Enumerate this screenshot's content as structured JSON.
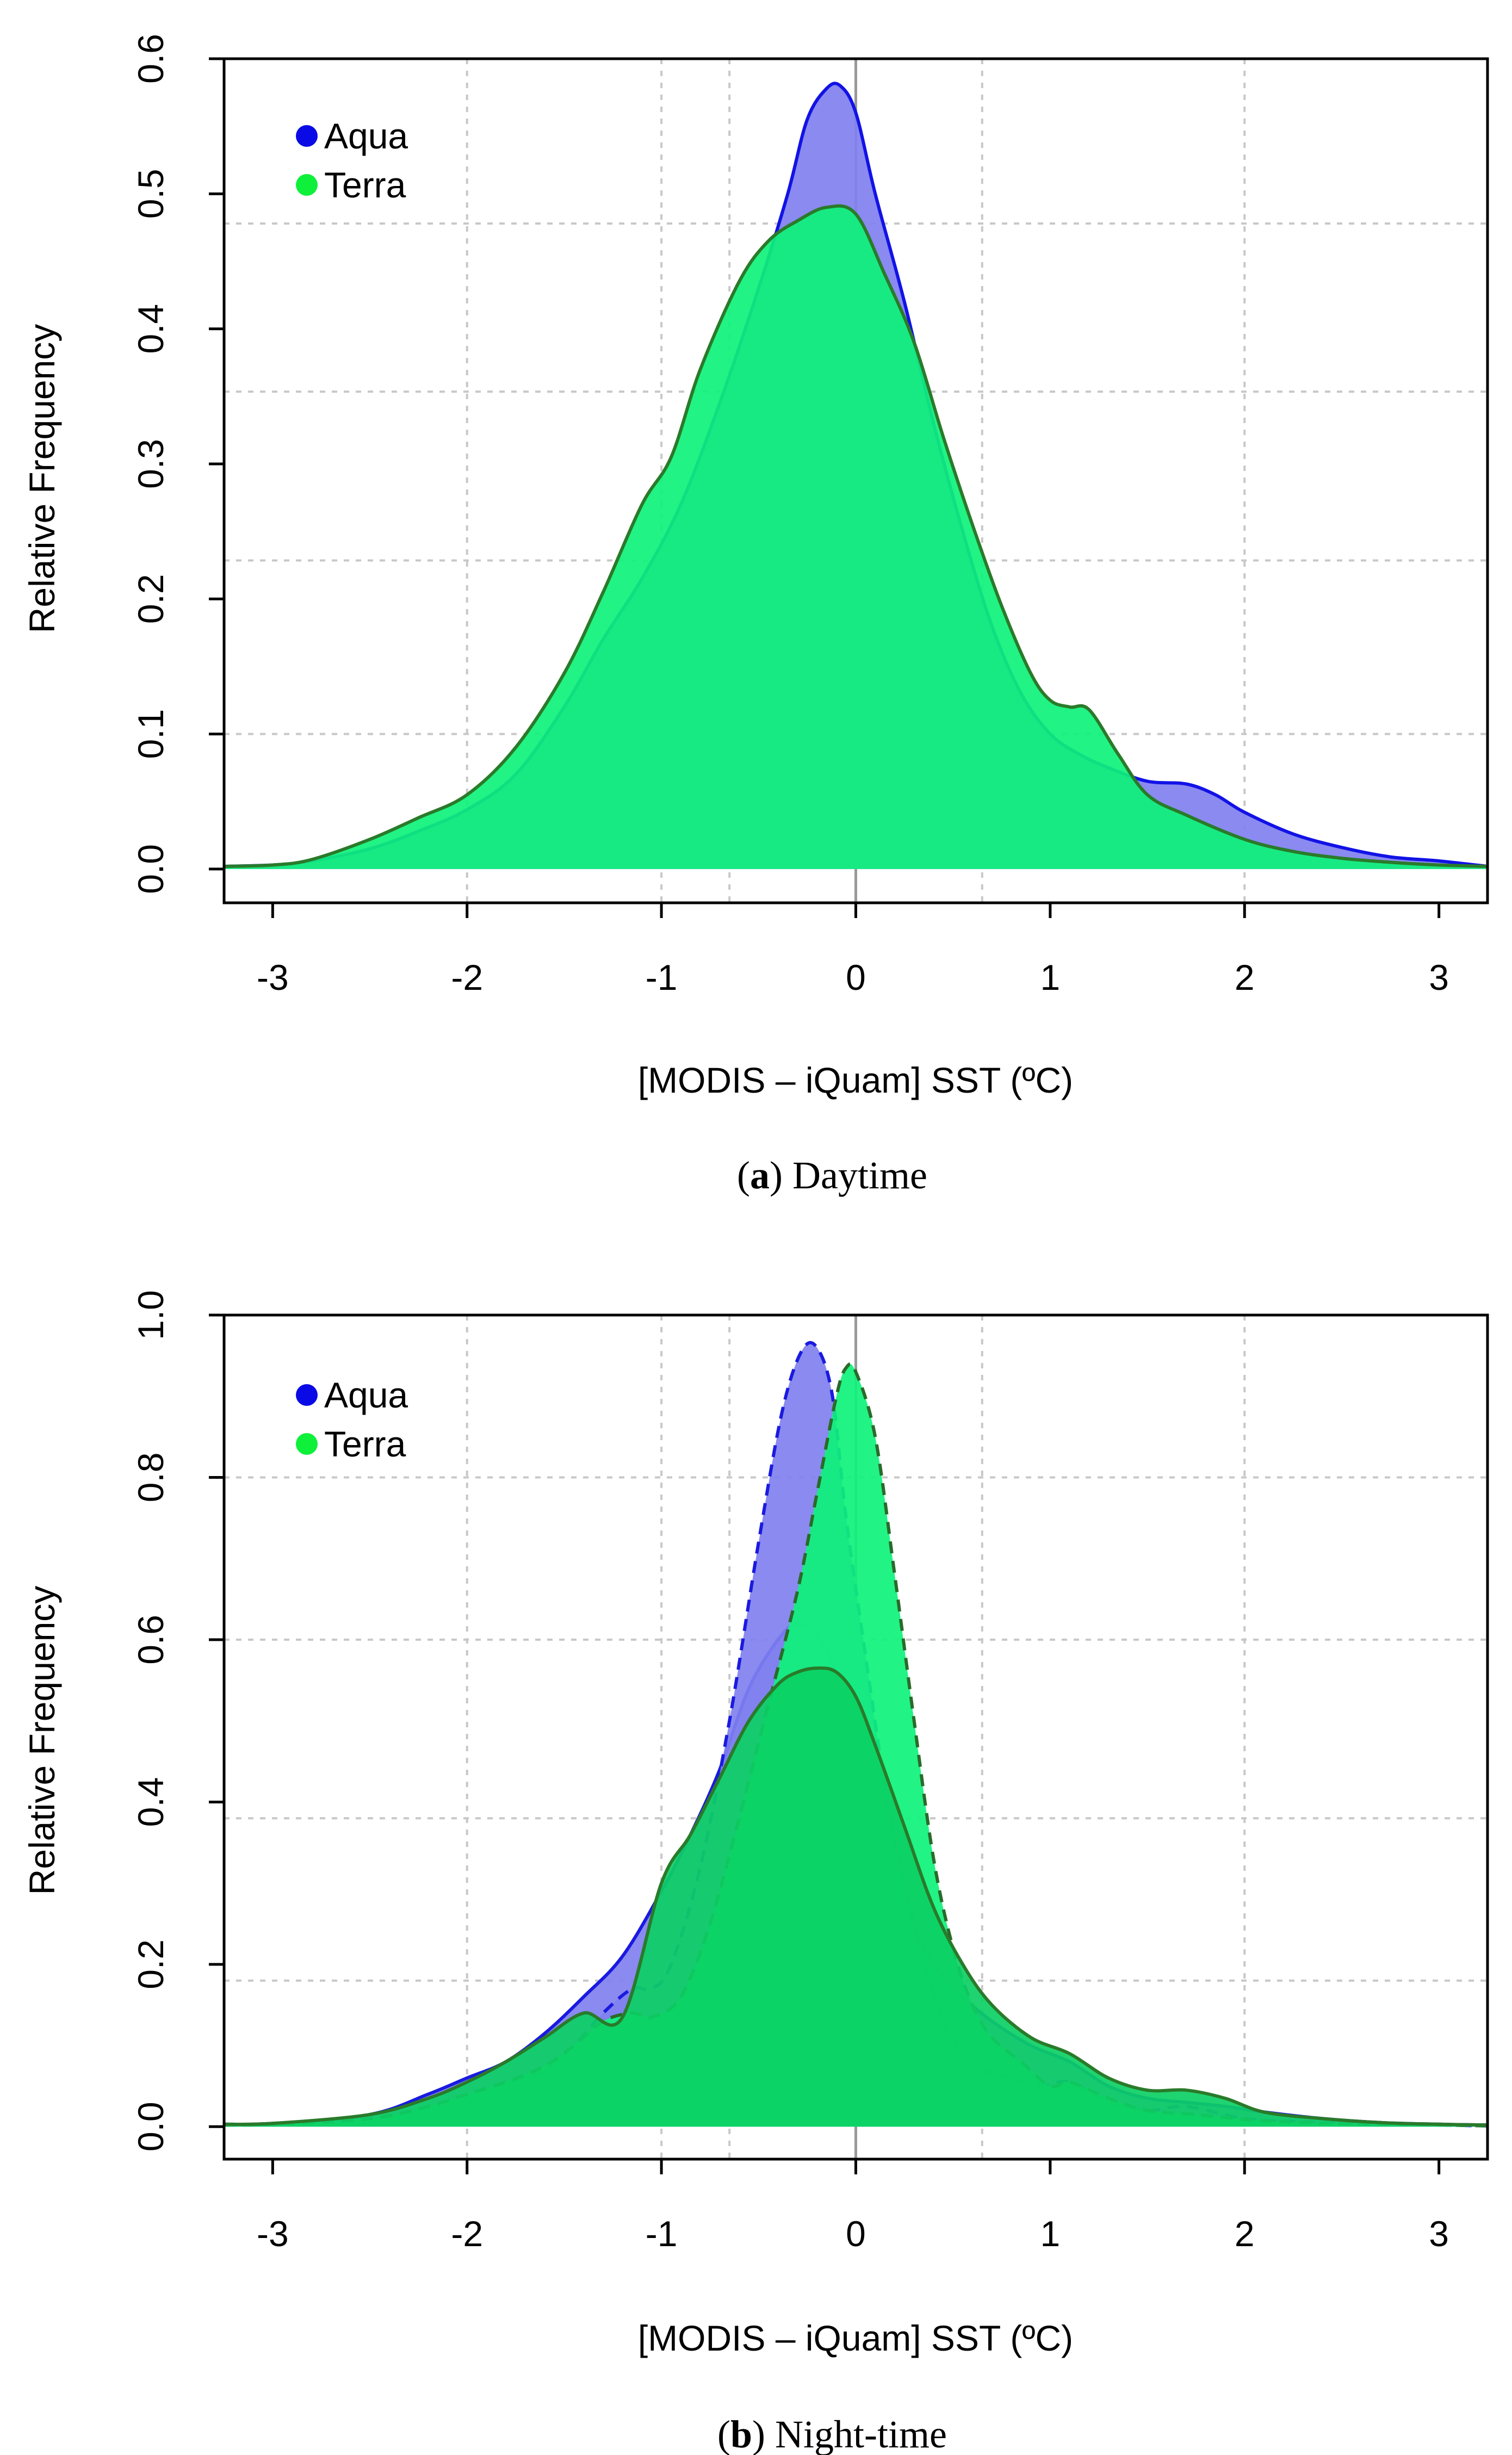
{
  "chart_data": [
    {
      "type": "area",
      "panel_label": "a",
      "panel_title": "Daytime",
      "xlabel": "[MODIS – iQuam] SST (ºC)",
      "ylabel": "Relative Frequency",
      "xlim": [
        -3.25,
        3.25
      ],
      "ylim": [
        -0.025,
        0.6
      ],
      "xticks": [
        -3,
        -2,
        -1,
        0,
        1,
        2,
        3
      ],
      "yticks": [
        0.0,
        0.1,
        0.2,
        0.3,
        0.4,
        0.5,
        0.6
      ],
      "ytick_labels": [
        "0.0",
        "0.1",
        "0.2",
        "0.3",
        "0.4",
        "0.5",
        "0.6"
      ],
      "xtick_labels": [
        "-3",
        "-2",
        "-1",
        "0",
        "1",
        "2",
        "3"
      ],
      "vgrid": [
        -2,
        -1,
        -0.65,
        0.65,
        2
      ],
      "hgrid": [
        0.1,
        0.2285,
        0.3535,
        0.478
      ],
      "zero_line": 0,
      "legend": [
        {
          "label": "Aqua",
          "color": "#0a0ae6"
        },
        {
          "label": "Terra",
          "color": "#0ef03a"
        }
      ],
      "series": [
        {
          "name": "Aqua",
          "fill": "#8080ef",
          "stroke": "#1212e6",
          "dashed": false,
          "x": [
            -3.25,
            -3.0,
            -2.8,
            -2.5,
            -2.25,
            -2.0,
            -1.75,
            -1.5,
            -1.3,
            -1.1,
            -0.9,
            -0.7,
            -0.5,
            -0.35,
            -0.25,
            -0.15,
            -0.08,
            0.0,
            0.1,
            0.25,
            0.4,
            0.55,
            0.7,
            0.85,
            1.0,
            1.15,
            1.3,
            1.5,
            1.7,
            1.85,
            2.0,
            2.25,
            2.5,
            2.75,
            3.0,
            3.25
          ],
          "y": [
            0.002,
            0.003,
            0.006,
            0.015,
            0.028,
            0.044,
            0.07,
            0.12,
            0.17,
            0.215,
            0.27,
            0.345,
            0.43,
            0.5,
            0.555,
            0.578,
            0.58,
            0.56,
            0.5,
            0.42,
            0.33,
            0.25,
            0.18,
            0.13,
            0.1,
            0.085,
            0.075,
            0.065,
            0.063,
            0.055,
            0.042,
            0.026,
            0.016,
            0.009,
            0.006,
            0.002
          ]
        },
        {
          "name": "Terra",
          "fill": "#0ef27a",
          "stroke": "#2a7a2a",
          "dashed": false,
          "x": [
            -3.25,
            -3.0,
            -2.8,
            -2.5,
            -2.25,
            -2.0,
            -1.75,
            -1.5,
            -1.3,
            -1.1,
            -0.95,
            -0.8,
            -0.6,
            -0.45,
            -0.3,
            -0.15,
            0.0,
            0.15,
            0.3,
            0.45,
            0.6,
            0.75,
            0.9,
            1.0,
            1.1,
            1.2,
            1.35,
            1.5,
            1.7,
            2.0,
            2.25,
            2.5,
            2.75,
            3.0,
            3.25
          ],
          "y": [
            0.002,
            0.003,
            0.007,
            0.022,
            0.038,
            0.055,
            0.09,
            0.145,
            0.205,
            0.27,
            0.305,
            0.37,
            0.435,
            0.465,
            0.48,
            0.49,
            0.485,
            0.44,
            0.39,
            0.32,
            0.255,
            0.195,
            0.145,
            0.125,
            0.12,
            0.118,
            0.085,
            0.055,
            0.04,
            0.022,
            0.013,
            0.008,
            0.005,
            0.003,
            0.002
          ]
        }
      ]
    },
    {
      "type": "area",
      "panel_label": "b",
      "panel_title": "Night-time",
      "xlabel": "[MODIS – iQuam] SST (ºC)",
      "ylabel": "Relative Frequency",
      "xlim": [
        -3.25,
        3.25
      ],
      "ylim": [
        -0.04,
        1.0
      ],
      "xticks": [
        -3,
        -2,
        -1,
        0,
        1,
        2,
        3
      ],
      "yticks": [
        0.0,
        0.2,
        0.4,
        0.6,
        0.8,
        1.0
      ],
      "ytick_labels": [
        "0.0",
        "0.2",
        "0.4",
        "0.6",
        "0.8",
        "1.0"
      ],
      "xtick_labels": [
        "-3",
        "-2",
        "-1",
        "0",
        "1",
        "2",
        "3"
      ],
      "vgrid": [
        -2,
        -1,
        -0.65,
        0.65,
        2
      ],
      "hgrid": [
        0.18,
        0.38,
        0.6,
        0.8
      ],
      "zero_line": 0,
      "legend": [
        {
          "label": "Aqua",
          "color": "#0a0ae6"
        },
        {
          "label": "Terra",
          "color": "#0ef03a"
        }
      ],
      "series": [
        {
          "name": "Aqua (solid)",
          "fill": "#8080ef",
          "stroke": "#1a1ae0",
          "dashed": false,
          "x": [
            -3.25,
            -3.0,
            -2.5,
            -2.2,
            -2.0,
            -1.8,
            -1.6,
            -1.4,
            -1.2,
            -1.0,
            -0.85,
            -0.7,
            -0.55,
            -0.4,
            -0.3,
            -0.2,
            -0.1,
            0.0,
            0.1,
            0.25,
            0.4,
            0.55,
            0.7,
            0.9,
            1.1,
            1.3,
            1.5,
            1.7,
            1.9,
            2.1,
            2.4,
            2.7,
            3.0,
            3.25
          ],
          "y": [
            0.003,
            0.004,
            0.015,
            0.04,
            0.06,
            0.08,
            0.115,
            0.16,
            0.21,
            0.29,
            0.36,
            0.44,
            0.54,
            0.6,
            0.62,
            0.605,
            0.56,
            0.48,
            0.38,
            0.27,
            0.2,
            0.16,
            0.13,
            0.1,
            0.08,
            0.05,
            0.035,
            0.03,
            0.025,
            0.018,
            0.01,
            0.005,
            0.003,
            0.002
          ]
        },
        {
          "name": "Aqua (dashed)",
          "fill": "#8080ef",
          "stroke": "#1a1ae0",
          "dashed": true,
          "x": [
            -3.25,
            -3.0,
            -2.5,
            -2.2,
            -2.0,
            -1.8,
            -1.6,
            -1.45,
            -1.3,
            -1.15,
            -1.05,
            -0.95,
            -0.8,
            -0.65,
            -0.5,
            -0.38,
            -0.28,
            -0.2,
            -0.12,
            -0.05,
            0.05,
            0.15,
            0.25,
            0.35,
            0.45,
            0.55,
            0.65,
            0.8,
            0.95,
            1.1,
            1.3,
            1.5,
            1.7,
            2.0,
            2.3,
            2.7,
            3.0,
            3.25
          ],
          "y": [
            0.002,
            0.003,
            0.01,
            0.025,
            0.04,
            0.055,
            0.07,
            0.1,
            0.14,
            0.17,
            0.17,
            0.2,
            0.32,
            0.5,
            0.72,
            0.88,
            0.955,
            0.96,
            0.9,
            0.75,
            0.58,
            0.42,
            0.3,
            0.2,
            0.13,
            0.09,
            0.07,
            0.06,
            0.05,
            0.055,
            0.03,
            0.02,
            0.025,
            0.01,
            0.006,
            0.003,
            0.002,
            0.001
          ]
        },
        {
          "name": "Terra (dashed)",
          "fill": "#0ef27a",
          "stroke": "#2a6a2a",
          "dashed": true,
          "x": [
            -3.25,
            -3.0,
            -2.5,
            -2.2,
            -2.0,
            -1.8,
            -1.6,
            -1.45,
            -1.3,
            -1.15,
            -1.05,
            -0.9,
            -0.75,
            -0.6,
            -0.45,
            -0.3,
            -0.2,
            -0.1,
            -0.05,
            0.0,
            0.1,
            0.2,
            0.3,
            0.4,
            0.5,
            0.6,
            0.7,
            0.85,
            1.0,
            1.1,
            1.3,
            1.5,
            1.75,
            2.0,
            2.3,
            2.7,
            3.0,
            3.25
          ],
          "y": [
            0.002,
            0.003,
            0.01,
            0.025,
            0.04,
            0.055,
            0.075,
            0.1,
            0.13,
            0.14,
            0.135,
            0.16,
            0.25,
            0.38,
            0.52,
            0.66,
            0.78,
            0.9,
            0.935,
            0.93,
            0.85,
            0.68,
            0.5,
            0.33,
            0.22,
            0.15,
            0.11,
            0.08,
            0.05,
            0.055,
            0.035,
            0.02,
            0.015,
            0.009,
            0.005,
            0.003,
            0.002,
            0.001
          ]
        },
        {
          "name": "Terra (solid)",
          "fill": "#0cd064",
          "stroke": "#2a7a2a",
          "dashed": false,
          "x": [
            -3.25,
            -3.0,
            -2.5,
            -2.2,
            -2.0,
            -1.8,
            -1.6,
            -1.4,
            -1.2,
            -1.0,
            -0.85,
            -0.7,
            -0.55,
            -0.4,
            -0.3,
            -0.2,
            -0.1,
            0.0,
            0.1,
            0.25,
            0.4,
            0.55,
            0.7,
            0.9,
            1.1,
            1.3,
            1.5,
            1.7,
            1.9,
            2.1,
            2.4,
            2.7,
            3.0,
            3.25
          ],
          "y": [
            0.003,
            0.004,
            0.015,
            0.035,
            0.055,
            0.08,
            0.11,
            0.14,
            0.135,
            0.3,
            0.36,
            0.43,
            0.5,
            0.545,
            0.56,
            0.565,
            0.56,
            0.53,
            0.47,
            0.37,
            0.27,
            0.2,
            0.15,
            0.11,
            0.09,
            0.06,
            0.045,
            0.045,
            0.035,
            0.018,
            0.01,
            0.005,
            0.003,
            0.002
          ]
        }
      ]
    }
  ],
  "captions": [
    {
      "label": "a",
      "text": "Daytime"
    },
    {
      "label": "b",
      "text": "Night-time"
    }
  ]
}
